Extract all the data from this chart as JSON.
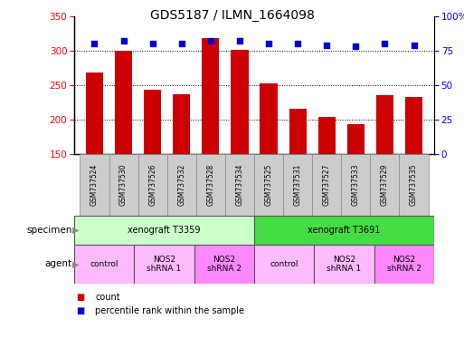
{
  "title": "GDS5187 / ILMN_1664098",
  "samples": [
    "GSM737524",
    "GSM737530",
    "GSM737526",
    "GSM737532",
    "GSM737528",
    "GSM737534",
    "GSM737525",
    "GSM737531",
    "GSM737527",
    "GSM737533",
    "GSM737529",
    "GSM737535"
  ],
  "counts": [
    269,
    300,
    244,
    237,
    318,
    301,
    252,
    216,
    204,
    193,
    235,
    233
  ],
  "percentile_ranks": [
    80,
    82,
    80,
    80,
    82,
    82,
    80,
    80,
    79,
    78,
    80,
    79
  ],
  "ylim_left": [
    150,
    350
  ],
  "ylim_right": [
    0,
    100
  ],
  "yticks_left": [
    150,
    200,
    250,
    300,
    350
  ],
  "yticks_right": [
    0,
    25,
    50,
    75,
    100
  ],
  "bar_color": "#cc0000",
  "dot_color": "#0000cc",
  "bar_bottom": 150,
  "specimen_labels": [
    {
      "text": "xenograft T3359",
      "start": 0,
      "end": 5,
      "color": "#ccffcc"
    },
    {
      "text": "xenograft T3691",
      "start": 6,
      "end": 11,
      "color": "#44dd44"
    }
  ],
  "agent_labels": [
    {
      "text": "control",
      "start": 0,
      "end": 1,
      "color": "#ffbbff"
    },
    {
      "text": "NOS2\nshRNA 1",
      "start": 2,
      "end": 3,
      "color": "#ffbbff"
    },
    {
      "text": "NOS2\nshRNA 2",
      "start": 4,
      "end": 5,
      "color": "#ff88ff"
    },
    {
      "text": "control",
      "start": 6,
      "end": 7,
      "color": "#ffbbff"
    },
    {
      "text": "NOS2\nshRNA 1",
      "start": 8,
      "end": 9,
      "color": "#ffbbff"
    },
    {
      "text": "NOS2\nshRNA 2",
      "start": 10,
      "end": 11,
      "color": "#ff88ff"
    }
  ],
  "specimen_row_label": "specimen",
  "agent_row_label": "agent",
  "legend_count_label": "count",
  "legend_pct_label": "percentile rank within the sample",
  "bg_color": "#ffffff",
  "sample_box_color": "#cccccc",
  "dotted_lines": [
    200,
    250,
    300
  ],
  "pct_right_labels": [
    "0",
    "25",
    "50",
    "75",
    "100%"
  ]
}
